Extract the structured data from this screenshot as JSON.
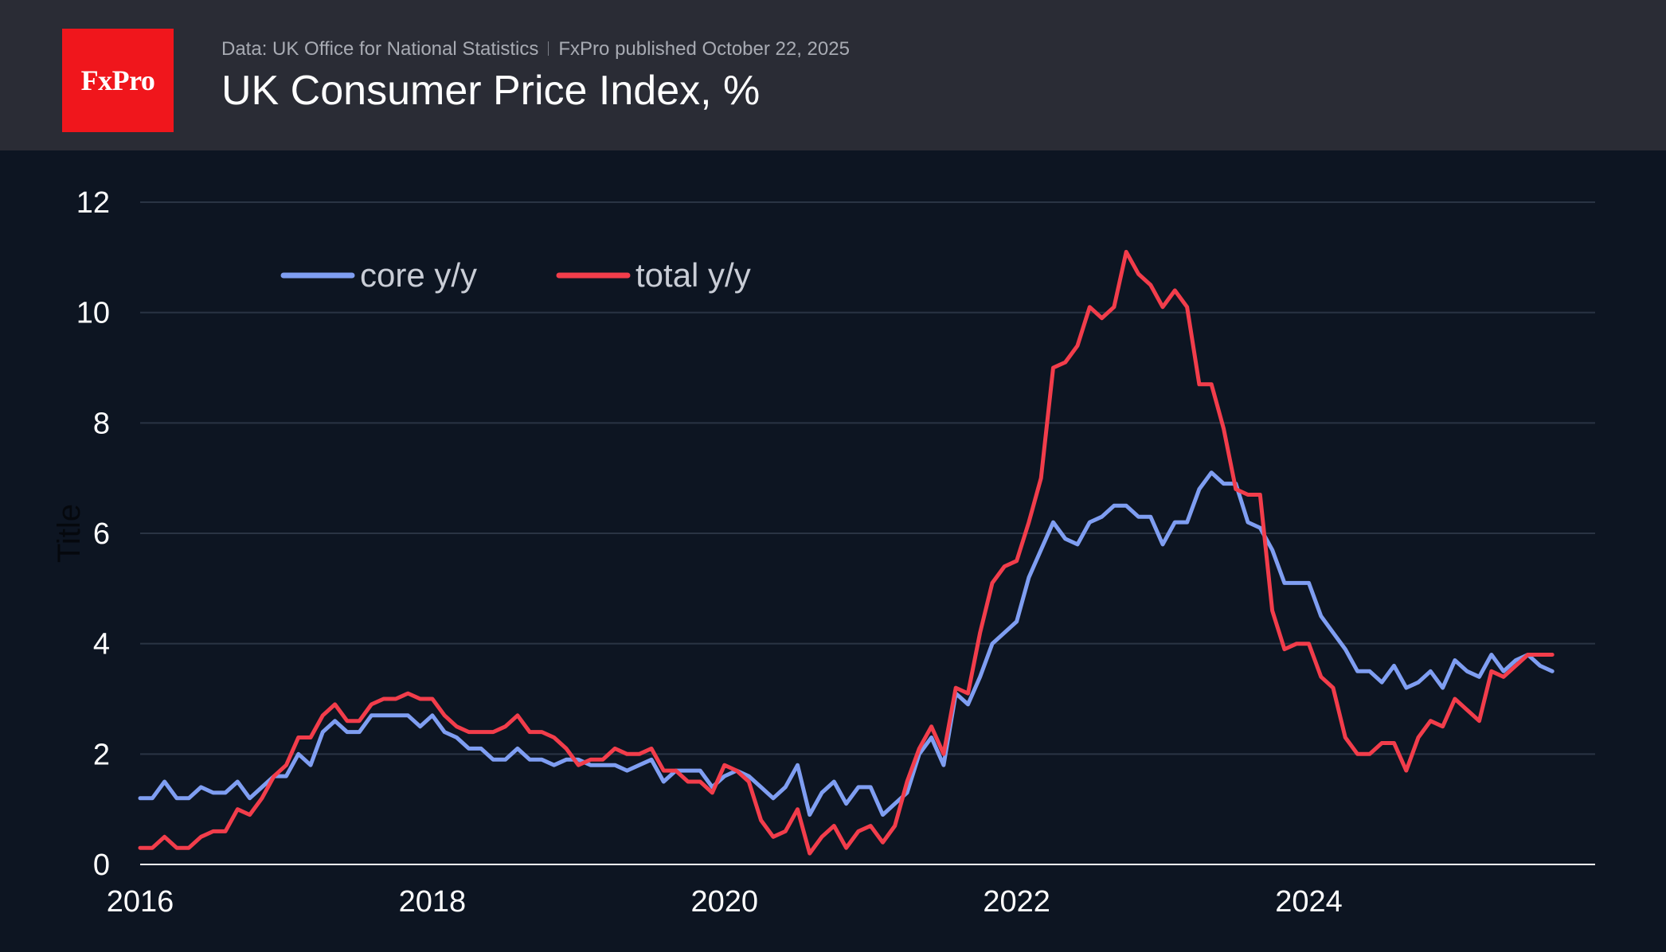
{
  "header": {
    "logo_text": "FxPro",
    "source": "Data: UK Office for National Statistics",
    "published": "FxPro published October 22, 2025",
    "title": "UK Consumer Price Index, %"
  },
  "chart_data": {
    "type": "line",
    "ylabel": "Title",
    "xlim": [
      2016.0,
      2025.96
    ],
    "ylim": [
      0,
      12
    ],
    "y_ticks": [
      0,
      2,
      4,
      6,
      8,
      10,
      12
    ],
    "x_ticks": [
      2016,
      2018,
      2020,
      2022,
      2024
    ],
    "grid": "horizontal",
    "legend_position": "top-left",
    "colors": {
      "core": "#7f9ef2",
      "total": "#f23d4b"
    },
    "x_start": 2016.0,
    "x_step_months": 1,
    "series": [
      {
        "name": "core y/y",
        "key": "core",
        "values": [
          1.2,
          1.2,
          1.5,
          1.2,
          1.2,
          1.4,
          1.3,
          1.3,
          1.5,
          1.2,
          1.4,
          1.6,
          1.6,
          2.0,
          1.8,
          2.4,
          2.6,
          2.4,
          2.4,
          2.7,
          2.7,
          2.7,
          2.7,
          2.5,
          2.7,
          2.4,
          2.3,
          2.1,
          2.1,
          1.9,
          1.9,
          2.1,
          1.9,
          1.9,
          1.8,
          1.9,
          1.9,
          1.8,
          1.8,
          1.8,
          1.7,
          1.8,
          1.9,
          1.5,
          1.7,
          1.7,
          1.7,
          1.4,
          1.6,
          1.7,
          1.6,
          1.4,
          1.2,
          1.4,
          1.8,
          0.9,
          1.3,
          1.5,
          1.1,
          1.4,
          1.4,
          0.9,
          1.1,
          1.3,
          2.0,
          2.3,
          1.8,
          3.1,
          2.9,
          3.4,
          4.0,
          4.2,
          4.4,
          5.2,
          5.7,
          6.2,
          5.9,
          5.8,
          6.2,
          6.3,
          6.5,
          6.5,
          6.3,
          6.3,
          5.8,
          6.2,
          6.2,
          6.8,
          7.1,
          6.9,
          6.9,
          6.2,
          6.1,
          5.7,
          5.1,
          5.1,
          5.1,
          4.5,
          4.2,
          3.9,
          3.5,
          3.5,
          3.3,
          3.6,
          3.2,
          3.3,
          3.5,
          3.2,
          3.7,
          3.5,
          3.4,
          3.8,
          3.5,
          3.7,
          3.8,
          3.6,
          3.5
        ],
        "series_note": ""
      },
      {
        "name": "total y/y",
        "key": "total",
        "values": [
          0.3,
          0.3,
          0.5,
          0.3,
          0.3,
          0.5,
          0.6,
          0.6,
          1.0,
          0.9,
          1.2,
          1.6,
          1.8,
          2.3,
          2.3,
          2.7,
          2.9,
          2.6,
          2.6,
          2.9,
          3.0,
          3.0,
          3.1,
          3.0,
          3.0,
          2.7,
          2.5,
          2.4,
          2.4,
          2.4,
          2.5,
          2.7,
          2.4,
          2.4,
          2.3,
          2.1,
          1.8,
          1.9,
          1.9,
          2.1,
          2.0,
          2.0,
          2.1,
          1.7,
          1.7,
          1.5,
          1.5,
          1.3,
          1.8,
          1.7,
          1.5,
          0.8,
          0.5,
          0.6,
          1.0,
          0.2,
          0.5,
          0.7,
          0.3,
          0.6,
          0.7,
          0.4,
          0.7,
          1.5,
          2.1,
          2.5,
          2.0,
          3.2,
          3.1,
          4.2,
          5.1,
          5.4,
          5.5,
          6.2,
          7.0,
          9.0,
          9.1,
          9.4,
          10.1,
          9.9,
          10.1,
          11.1,
          10.7,
          10.5,
          10.1,
          10.4,
          10.1,
          8.7,
          8.7,
          7.9,
          6.8,
          6.7,
          6.7,
          4.6,
          3.9,
          4.0,
          4.0,
          3.4,
          3.2,
          2.3,
          2.0,
          2.0,
          2.2,
          2.2,
          1.7,
          2.3,
          2.6,
          2.5,
          3.0,
          2.8,
          2.6,
          3.5,
          3.4,
          3.6,
          3.8,
          3.8,
          3.8
        ]
      }
    ]
  }
}
